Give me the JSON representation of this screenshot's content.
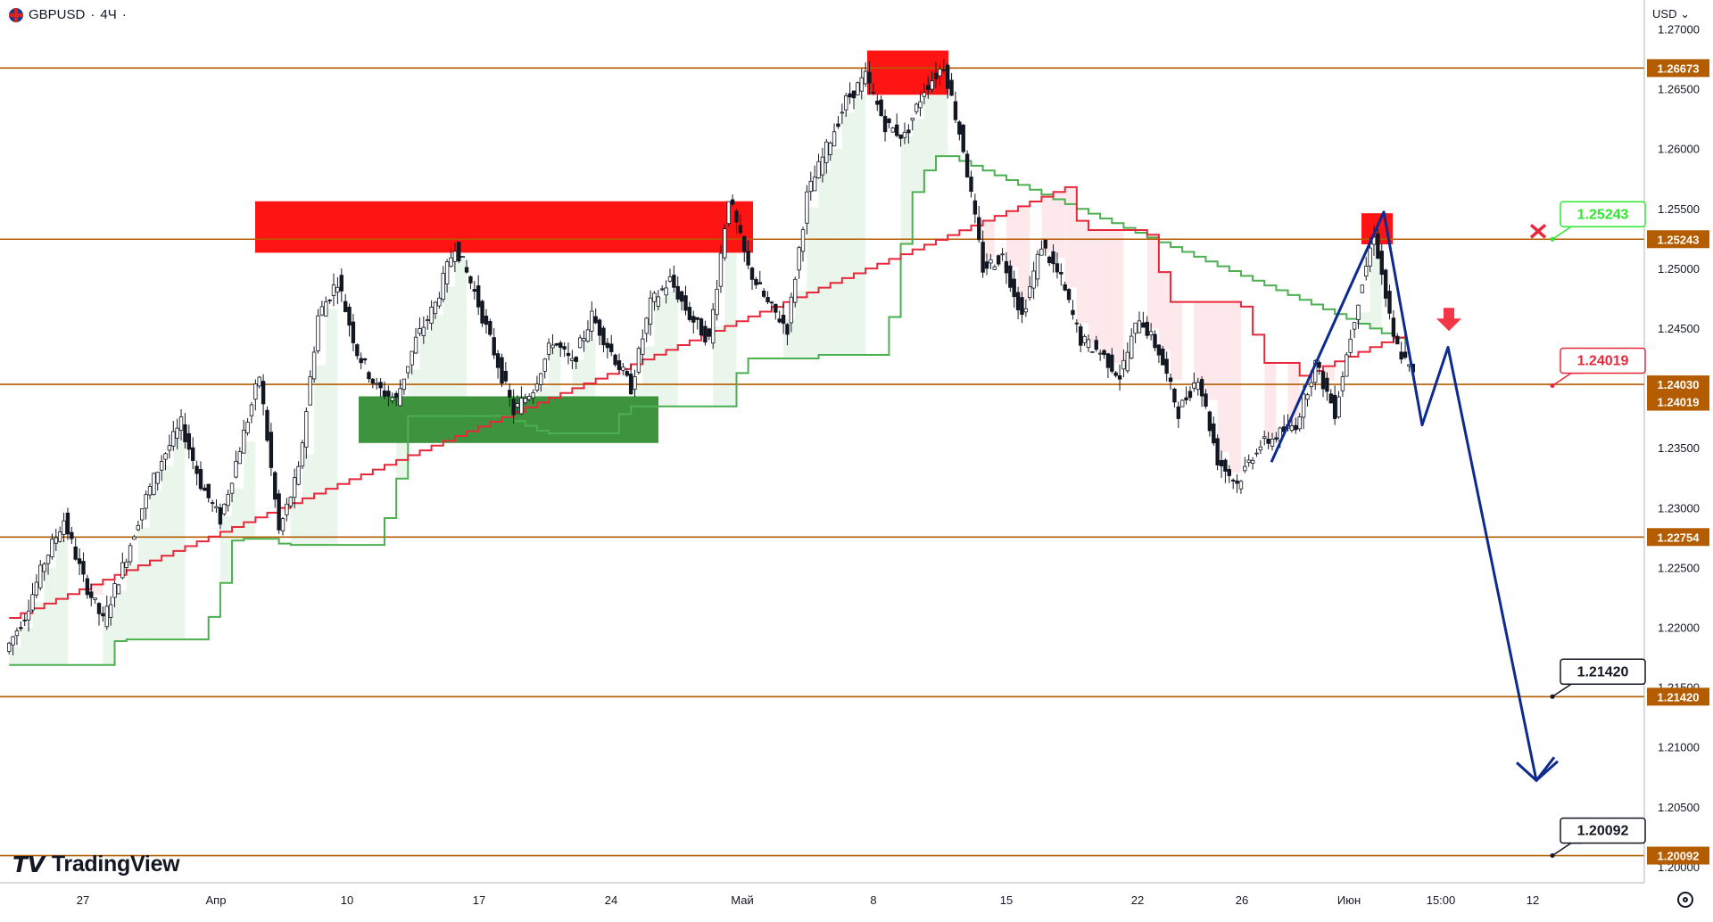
{
  "header": {
    "symbol": "GBPUSD",
    "separator1": "·",
    "interval": "4Ч",
    "separator2": "·"
  },
  "currency_label": "USD",
  "brand": "TradingView",
  "colors": {
    "level_line": "#b35c00",
    "resistance_zone": "#ff0000",
    "support_zone": "#2e8b2e",
    "stop_red": "#e8283a",
    "stop_green": "#4caf50",
    "projection": "#0d2a8f",
    "candle": "#131722"
  },
  "chart_data": {
    "type": "line",
    "title": "",
    "xlabel": "",
    "ylabel": "",
    "ylim": [
      1.1985,
      1.272
    ],
    "x_ticks": [
      "27",
      "Апр",
      "10",
      "17",
      "24",
      "Май",
      "8",
      "15",
      "22",
      "26",
      "Июн",
      "15:00",
      "12"
    ],
    "y_ticks": [
      "1.27000",
      "1.26500",
      "1.26000",
      "1.25500",
      "1.25000",
      "1.24500",
      "1.23500",
      "1.23000",
      "1.22500",
      "1.22000",
      "1.21500",
      "1.21000",
      "1.20500",
      "1.20000"
    ],
    "horizontal_levels": [
      {
        "label": "1.26673",
        "value": 1.26673
      },
      {
        "label": "1.25243",
        "value": 1.25243
      },
      {
        "label": "1.24030",
        "value": 1.2403
      },
      {
        "label": "1.22754",
        "value": 1.22754
      },
      {
        "label": "1.21420",
        "value": 1.2142
      },
      {
        "label": "1.20092",
        "value": 1.20092
      }
    ],
    "current_price_label": {
      "label": "1.24019",
      "value": 1.24019
    },
    "callouts": [
      {
        "label": "1.25243",
        "value": 1.25243,
        "style": "green"
      },
      {
        "label": "1.24019",
        "value": 1.24019,
        "style": "red"
      },
      {
        "label": "1.21420",
        "value": 1.2142,
        "style": "black"
      },
      {
        "label": "1.20092",
        "value": 1.20092,
        "style": "black"
      }
    ],
    "zones": [
      {
        "kind": "resistance",
        "from": 1.2513,
        "to": 1.2556
      },
      {
        "kind": "resistance",
        "from": 1.2645,
        "to": 1.2682
      },
      {
        "kind": "resistance",
        "from": 1.252,
        "to": 1.2546
      },
      {
        "kind": "support",
        "from": 1.2354,
        "to": 1.2393
      }
    ],
    "projection_path": [
      1.2338,
      1.2547,
      1.2369,
      1.2434,
      1.2072,
      1.2088
    ],
    "price_path": [
      1.218,
      1.221,
      1.2255,
      1.229,
      1.224,
      1.2205,
      1.225,
      1.23,
      1.234,
      1.237,
      1.232,
      1.229,
      1.235,
      1.241,
      1.228,
      1.233,
      1.246,
      1.249,
      1.243,
      1.24,
      1.239,
      1.244,
      1.247,
      1.252,
      1.248,
      1.243,
      1.238,
      1.24,
      1.244,
      1.242,
      1.246,
      1.243,
      1.24,
      1.247,
      1.249,
      1.246,
      1.244,
      1.256,
      1.25,
      1.247,
      1.245,
      1.256,
      1.26,
      1.264,
      1.266,
      1.262,
      1.261,
      1.265,
      1.267,
      1.26,
      1.25,
      1.251,
      1.246,
      1.252,
      1.249,
      1.244,
      1.243,
      1.241,
      1.246,
      1.243,
      1.238,
      1.241,
      1.234,
      1.232,
      1.235,
      1.236,
      1.237,
      1.242,
      1.238,
      1.246,
      1.253,
      1.244,
      1.241
    ]
  }
}
